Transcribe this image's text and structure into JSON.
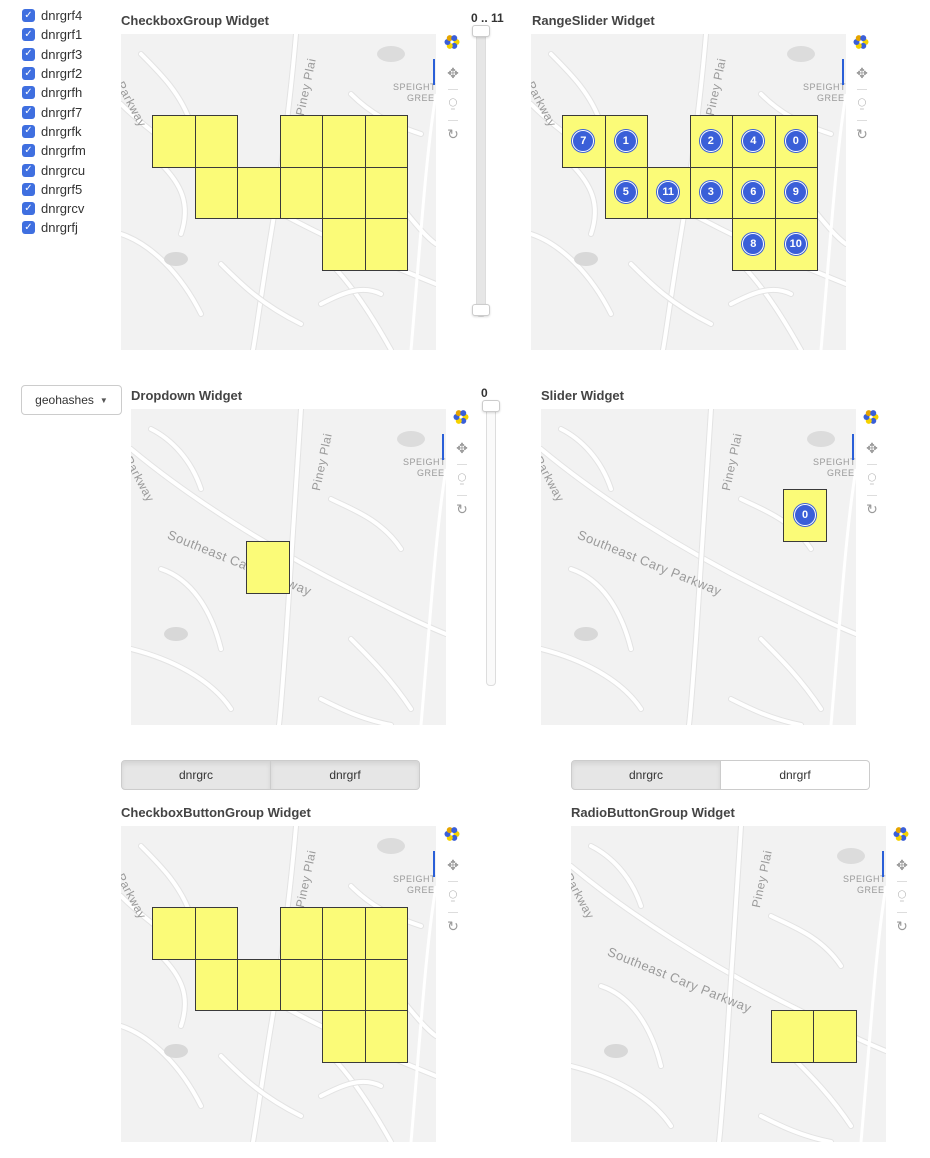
{
  "checkbox_group": {
    "items": [
      {
        "label": "dnrgrf4",
        "checked": true
      },
      {
        "label": "dnrgrf1",
        "checked": true
      },
      {
        "label": "dnrgrf3",
        "checked": true
      },
      {
        "label": "dnrgrf2",
        "checked": true
      },
      {
        "label": "dnrgrfh",
        "checked": true
      },
      {
        "label": "dnrgrf7",
        "checked": true
      },
      {
        "label": "dnrgrfk",
        "checked": true
      },
      {
        "label": "dnrgrfm",
        "checked": true
      },
      {
        "label": "dnrgrcu",
        "checked": true
      },
      {
        "label": "dnrgrf5",
        "checked": true
      },
      {
        "label": "dnrgrcv",
        "checked": true
      },
      {
        "label": "dnrgrfj",
        "checked": true
      }
    ],
    "check_glyph": "✓"
  },
  "range_slider": {
    "label": "0 .. 11",
    "start": 0,
    "end": 11,
    "min": 0,
    "max": 11
  },
  "slider": {
    "label": "0",
    "value": 0
  },
  "dropdown": {
    "label": "geohashes",
    "caret": "▼"
  },
  "panels": {
    "checkbox_group": {
      "title": "CheckboxGroup Widget"
    },
    "range_slider": {
      "title": "RangeSlider Widget"
    },
    "dropdown": {
      "title": "Dropdown Widget"
    },
    "slider": {
      "title": "Slider Widget"
    },
    "checkbox_button_group": {
      "title": "CheckboxButtonGroup Widget"
    },
    "radio_button_group": {
      "title": "RadioButtonGroup Widget"
    }
  },
  "map_labels": {
    "road_piney": "Piney Plai",
    "road_parkway": "Parkway",
    "speight": "SPEIGHT",
    "green": "GREE",
    "road_cary": "Southeast Cary Parkway"
  },
  "checkbox_button_group": {
    "buttons": [
      {
        "label": "dnrgrc",
        "active": true
      },
      {
        "label": "dnrgrf",
        "active": true
      }
    ]
  },
  "radio_button_group": {
    "buttons": [
      {
        "label": "dnrgrc",
        "active": true
      },
      {
        "label": "dnrgrf",
        "active": false
      }
    ]
  },
  "markers": {
    "range_slider": [
      "7",
      "1",
      "2",
      "4",
      "0",
      "5",
      "11",
      "3",
      "6",
      "9",
      "8",
      "10"
    ],
    "slider": [
      "0"
    ]
  },
  "toolbar": {
    "pan_icon": "✥",
    "wheel_zoom_icon": "⍜",
    "reset_icon": "↻"
  },
  "colors": {
    "cell_fill": "#fbfb78",
    "marker_fill": "#3a5fd8",
    "checkbox_fill": "#3f6fe0",
    "active_tool": "#2a5fd8"
  }
}
